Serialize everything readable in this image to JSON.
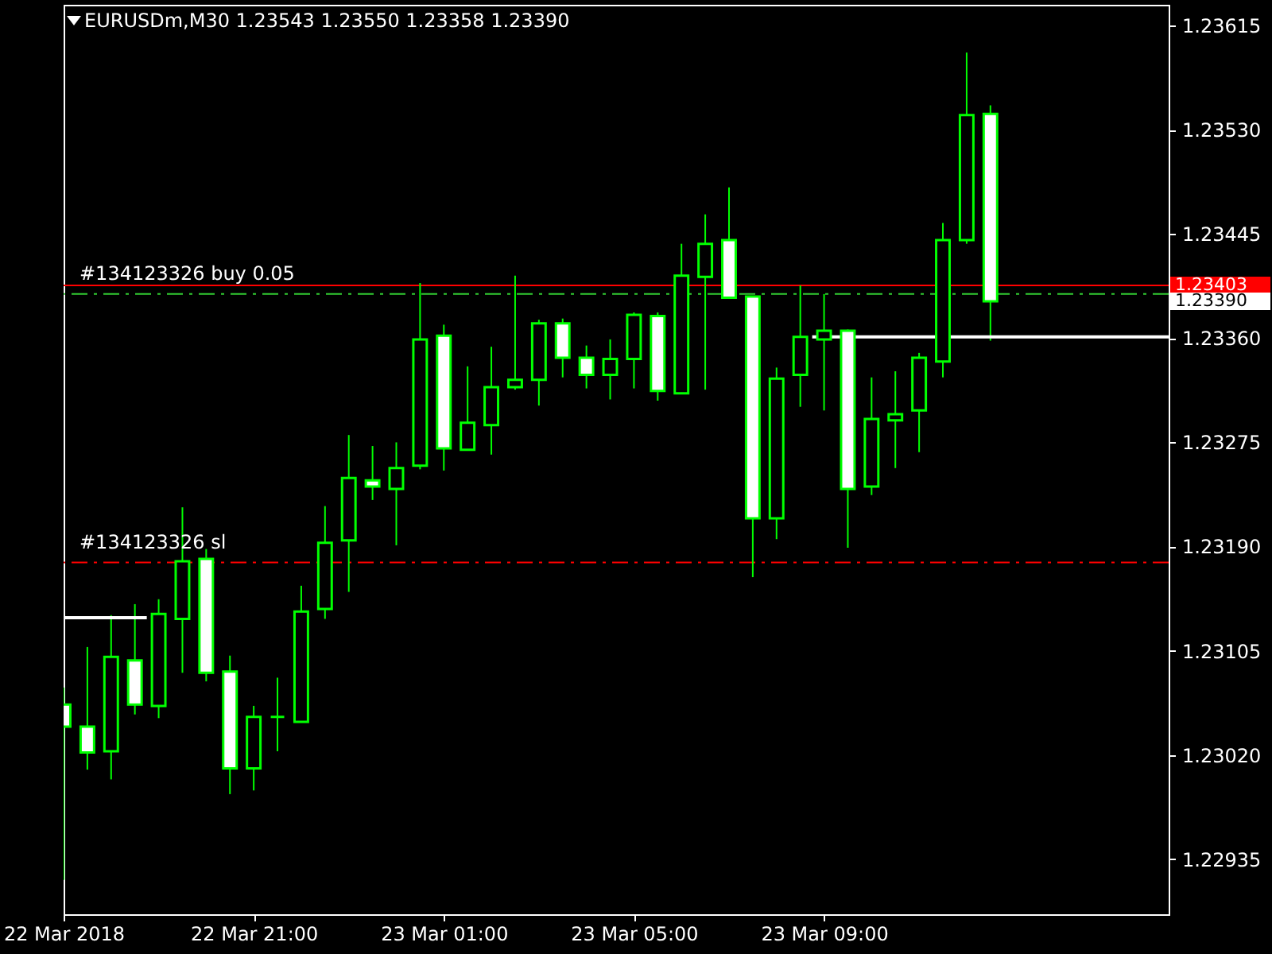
{
  "chart_data": {
    "type": "candlestick",
    "title": "EURUSDm,M30  1.23543 1.23550 1.23358 1.23390",
    "xlim": [
      "2018-03-22T17:00",
      "2018-03-23T16:15"
    ],
    "xticks": [
      {
        "value": "2018-03-22T17:00",
        "label": "22 Mar 2018"
      },
      {
        "value": "2018-03-22T21:00",
        "label": "22 Mar 21:00"
      },
      {
        "value": "2018-03-23T01:00",
        "label": "23 Mar 01:00"
      },
      {
        "value": "2018-03-23T05:00",
        "label": "23 Mar 05:00"
      },
      {
        "value": "2018-03-23T09:00",
        "label": "23 Mar 09:00"
      }
    ],
    "ylim": [
      1.2289,
      1.23632
    ],
    "yticks": [
      {
        "value": 1.22935,
        "label": "1.22935"
      },
      {
        "value": 1.2302,
        "label": "1.23020"
      },
      {
        "value": 1.23105,
        "label": "1.23105"
      },
      {
        "value": 1.2319,
        "label": "1.23190"
      },
      {
        "value": 1.23275,
        "label": "1.23275"
      },
      {
        "value": 1.2336,
        "label": "1.23360"
      },
      {
        "value": 1.23445,
        "label": "1.23445"
      },
      {
        "value": 1.2353,
        "label": "1.23530"
      },
      {
        "value": 1.23615,
        "label": "1.23615"
      }
    ],
    "x": [
      "2018-03-22T17:00",
      "2018-03-22T17:30",
      "2018-03-22T18:00",
      "2018-03-22T18:30",
      "2018-03-22T19:00",
      "2018-03-22T19:30",
      "2018-03-22T20:00",
      "2018-03-22T20:30",
      "2018-03-22T21:00",
      "2018-03-22T21:30",
      "2018-03-22T22:00",
      "2018-03-22T22:30",
      "2018-03-22T23:00",
      "2018-03-22T23:30",
      "2018-03-23T00:00",
      "2018-03-23T00:30",
      "2018-03-23T01:00",
      "2018-03-23T01:30",
      "2018-03-23T02:00",
      "2018-03-23T02:30",
      "2018-03-23T03:00",
      "2018-03-23T03:30",
      "2018-03-23T04:00",
      "2018-03-23T04:30",
      "2018-03-23T05:00",
      "2018-03-23T05:30",
      "2018-03-23T06:00",
      "2018-03-23T06:30",
      "2018-03-23T07:00",
      "2018-03-23T07:30",
      "2018-03-23T08:00",
      "2018-03-23T08:30",
      "2018-03-23T09:00",
      "2018-03-23T09:30",
      "2018-03-23T10:00",
      "2018-03-23T10:30",
      "2018-03-23T11:00",
      "2018-03-23T11:30",
      "2018-03-23T12:00",
      "2018-03-23T12:30"
    ],
    "ohlc": [
      [
        1.23061,
        1.23075,
        1.22918,
        1.23043
      ],
      [
        1.23043,
        1.23108,
        1.23008,
        1.23022
      ],
      [
        1.23023,
        1.23134,
        1.23,
        1.231
      ],
      [
        1.23097,
        1.23143,
        1.23053,
        1.23061
      ],
      [
        1.2306,
        1.23147,
        1.2305,
        1.23135
      ],
      [
        1.23131,
        1.23222,
        1.23087,
        1.23178
      ],
      [
        1.2318,
        1.23188,
        1.2308,
        1.23087
      ],
      [
        1.23088,
        1.23101,
        1.22988,
        1.23009
      ],
      [
        1.23009,
        1.2306,
        1.22991,
        1.23051
      ],
      [
        1.23051,
        1.23083,
        1.23023,
        1.23051
      ],
      [
        1.23047,
        1.23158,
        1.23047,
        1.23137
      ],
      [
        1.23139,
        1.23223,
        1.23131,
        1.23193
      ],
      [
        1.23195,
        1.23281,
        1.23153,
        1.23246
      ],
      [
        1.23244,
        1.23272,
        1.23228,
        1.23239
      ],
      [
        1.23237,
        1.23275,
        1.23191,
        1.23254
      ],
      [
        1.23256,
        1.23405,
        1.23253,
        1.23359
      ],
      [
        1.23362,
        1.23371,
        1.23252,
        1.2327
      ],
      [
        1.23269,
        1.23337,
        1.23269,
        1.23291
      ],
      [
        1.23289,
        1.23353,
        1.23265,
        1.2332
      ],
      [
        1.2332,
        1.23411,
        1.23318,
        1.23326
      ],
      [
        1.23326,
        1.23375,
        1.23305,
        1.23372
      ],
      [
        1.23372,
        1.23376,
        1.23328,
        1.23344
      ],
      [
        1.23344,
        1.23354,
        1.23319,
        1.2333
      ],
      [
        1.2333,
        1.23359,
        1.2331,
        1.23343
      ],
      [
        1.23343,
        1.23381,
        1.23319,
        1.23379
      ],
      [
        1.23378,
        1.23381,
        1.23309,
        1.23317
      ],
      [
        1.23315,
        1.23437,
        1.23315,
        1.23411
      ],
      [
        1.2341,
        1.23461,
        1.23318,
        1.23437
      ],
      [
        1.2344,
        1.23483,
        1.23392,
        1.23393
      ],
      [
        1.23394,
        1.23394,
        1.23165,
        1.23213
      ],
      [
        1.23213,
        1.23336,
        1.23196,
        1.23327
      ],
      [
        1.2333,
        1.23403,
        1.23304,
        1.23361
      ],
      [
        1.23359,
        1.23396,
        1.23301,
        1.23366
      ],
      [
        1.23366,
        1.23367,
        1.23189,
        1.23237
      ],
      [
        1.23239,
        1.23328,
        1.23232,
        1.23294
      ],
      [
        1.23293,
        1.23333,
        1.23254,
        1.23298
      ],
      [
        1.23301,
        1.23348,
        1.23267,
        1.23344
      ],
      [
        1.23341,
        1.23454,
        1.23328,
        1.2344
      ],
      [
        1.2344,
        1.23593,
        1.23437,
        1.23542
      ],
      [
        1.23543,
        1.2355,
        1.23358,
        1.2339
      ]
    ],
    "series": [
      {
        "type": "line",
        "color": "#ffffff",
        "x": [
          "2018-03-22T17:00",
          "2018-03-22T18:45"
        ],
        "values": [
          1.23132,
          1.23132
        ]
      },
      {
        "type": "line",
        "color": "#ffffff",
        "x": [
          "2018-03-23T08:45",
          "2018-03-23T16:15"
        ],
        "values": [
          1.23361,
          1.23361
        ]
      }
    ],
    "ref_lines": [
      {
        "axis": "y",
        "value": 1.23403,
        "label": "1.23403",
        "color": "#ff0000",
        "line_style": "solid"
      },
      {
        "axis": "y",
        "value": 1.23396,
        "label": "#134123326 buy 0.05",
        "color": "#32cd32",
        "line_style": "dashed"
      },
      {
        "axis": "y",
        "value": 1.23177,
        "label": "#134123326 sl",
        "color": "#ff0000",
        "line_style": "dashed"
      }
    ],
    "annotations": [
      "1.23390"
    ]
  }
}
